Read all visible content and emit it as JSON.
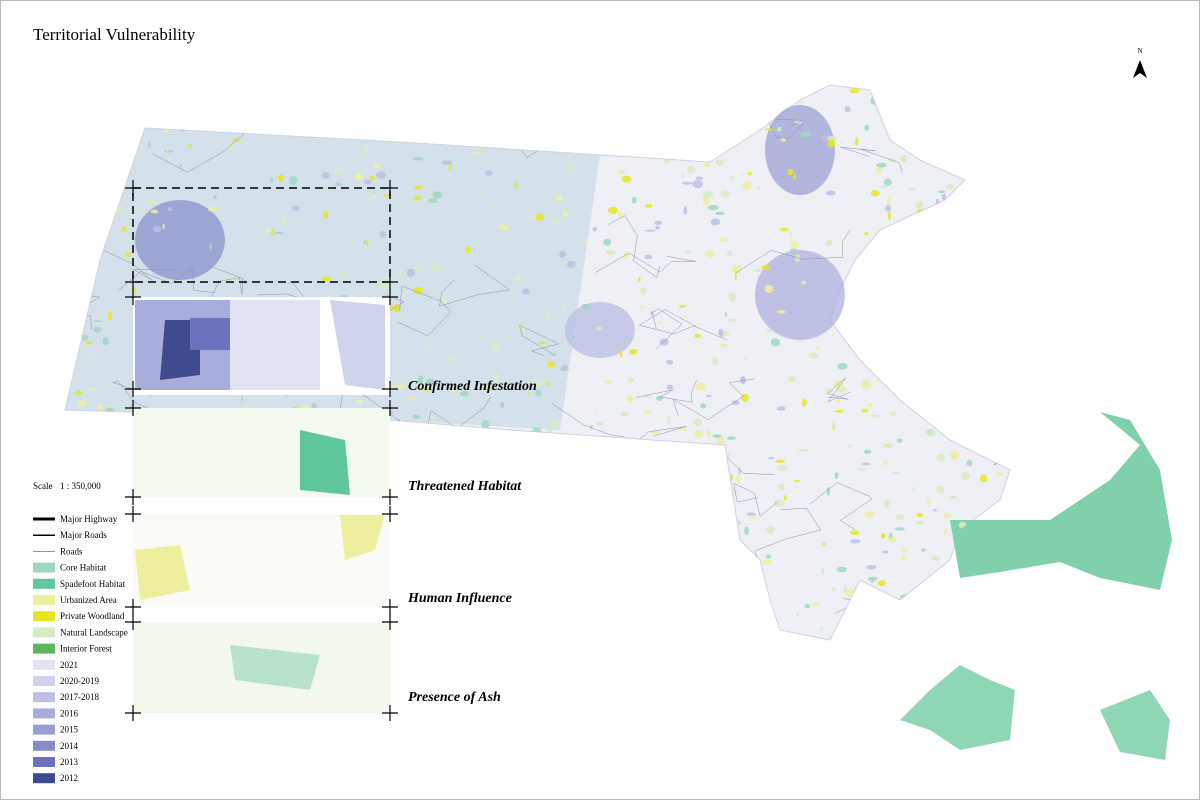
{
  "title": "Territorial Vulnerability",
  "north": "N",
  "scale": {
    "label": "Scale",
    "value": "1 : 350,000"
  },
  "legend": [
    {
      "label": "Major Highway",
      "symbol": "line",
      "color": "#000000",
      "width": 3
    },
    {
      "label": "Major Roads",
      "symbol": "line",
      "color": "#000000",
      "width": 1.5
    },
    {
      "label": "Roads",
      "symbol": "line",
      "color": "#555555",
      "width": 0.6
    },
    {
      "label": "Core Habitat",
      "symbol": "patch",
      "color": "#9fd8bf"
    },
    {
      "label": "Spadefoot Habitat",
      "symbol": "patch",
      "color": "#5fc79c"
    },
    {
      "label": "Urbanized Area",
      "symbol": "patch",
      "color": "#eeee9f"
    },
    {
      "label": "Private Woodland",
      "symbol": "patch",
      "color": "#e6e620"
    },
    {
      "label": "Natural Landscape",
      "symbol": "patch",
      "color": "#d7ebc6"
    },
    {
      "label": "Interior Forest",
      "symbol": "patch",
      "color": "#5cb85c"
    },
    {
      "label": "2021",
      "symbol": "patch",
      "color": "#e1e3f2"
    },
    {
      "label": "2020-2019",
      "symbol": "patch",
      "color": "#d0d3ec"
    },
    {
      "label": "2017-2018",
      "symbol": "patch",
      "color": "#bcc0e3"
    },
    {
      "label": "2016",
      "symbol": "patch",
      "color": "#a9addb"
    },
    {
      "label": "2015",
      "symbol": "patch",
      "color": "#989dd3"
    },
    {
      "label": "2014",
      "symbol": "patch",
      "color": "#868cca"
    },
    {
      "label": "2013",
      "symbol": "patch",
      "color": "#6a71bd"
    },
    {
      "label": "2012",
      "symbol": "patch",
      "color": "#404a8f"
    }
  ],
  "panels": [
    {
      "label": "Confirmed Infestation"
    },
    {
      "label": "Threatened Habitat"
    },
    {
      "label": "Human Influence"
    },
    {
      "label": "Presence of Ash"
    }
  ]
}
